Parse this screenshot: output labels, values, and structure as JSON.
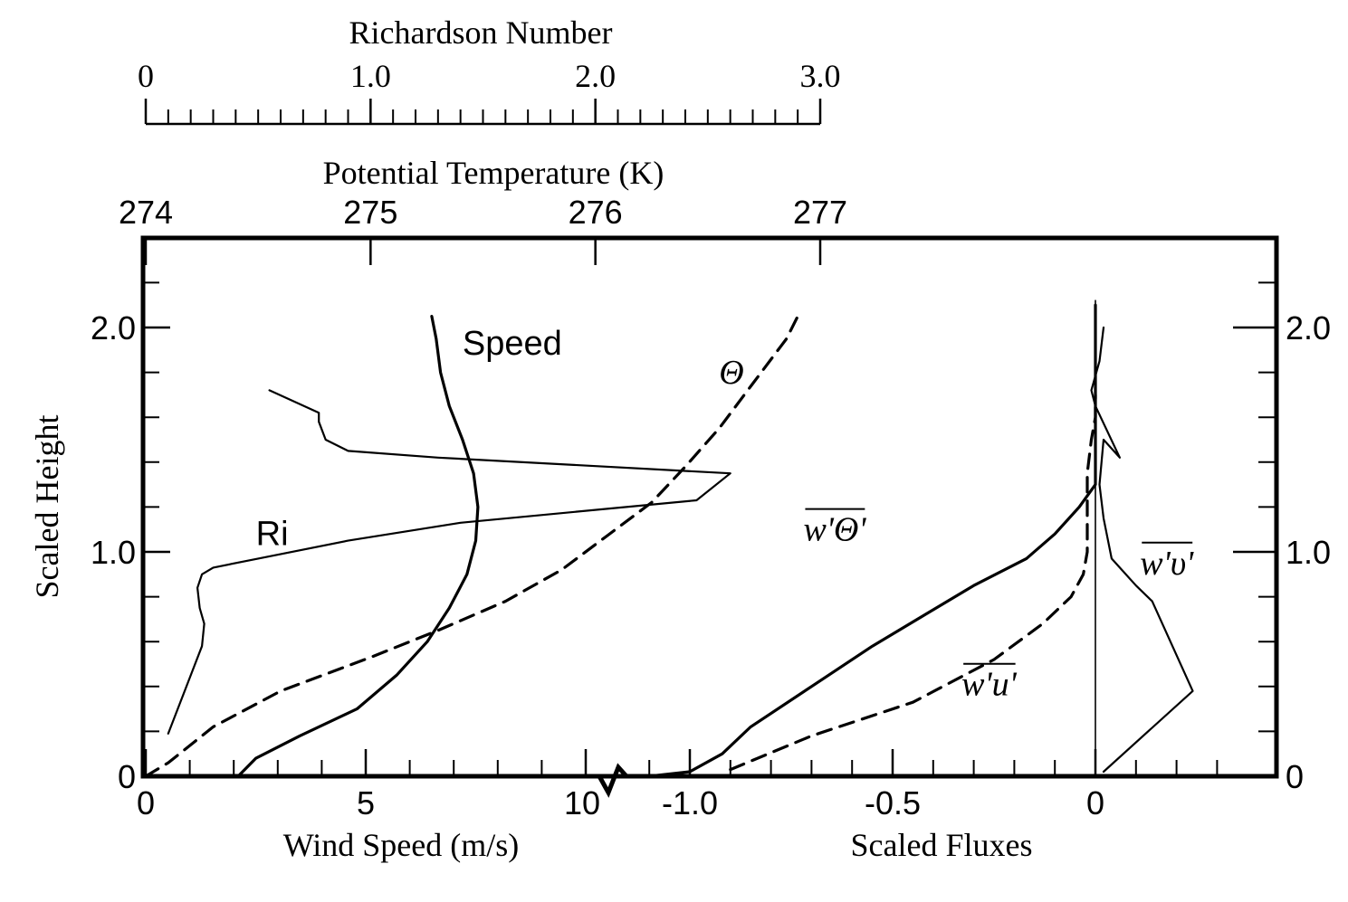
{
  "chart_data": {
    "type": "line",
    "axes": {
      "richardson": {
        "title": "Richardson Number",
        "range": [
          0,
          3.0
        ],
        "ticks": [
          {
            "v": 0,
            "label": "0"
          },
          {
            "v": 1.0,
            "label": "1.0"
          },
          {
            "v": 2.0,
            "label": "2.0"
          },
          {
            "v": 3.0,
            "label": "3.0"
          }
        ],
        "minor_step": 0.1
      },
      "potential_temperature": {
        "title": "Potential Temperature (K)",
        "range": [
          274,
          277
        ],
        "ticks": [
          {
            "v": 274,
            "label": "274"
          },
          {
            "v": 275,
            "label": "275"
          },
          {
            "v": 276,
            "label": "276"
          },
          {
            "v": 277,
            "label": "277"
          }
        ]
      },
      "wind_speed": {
        "title": "Wind Speed (m/s)",
        "range": [
          0,
          10.5
        ],
        "ticks": [
          {
            "v": 0,
            "label": "0"
          },
          {
            "v": 5,
            "label": "5"
          },
          {
            "v": 10,
            "label": "10"
          }
        ],
        "minor_step": 1
      },
      "scaled_fluxes": {
        "title": "Scaled Fluxes",
        "range": [
          -1.2,
          0.4
        ],
        "ticks": [
          {
            "v": -1.0,
            "label": "-1.0"
          },
          {
            "v": -0.5,
            "label": "-0.5"
          },
          {
            "v": 0,
            "label": "0"
          }
        ],
        "minor_step": 0.1
      },
      "height": {
        "title": "Scaled Height",
        "range": [
          0,
          2.4
        ],
        "left_ticks": [
          {
            "v": 0,
            "label": "0"
          },
          {
            "v": 1.0,
            "label": "1.0"
          },
          {
            "v": 2.0,
            "label": "2.0"
          }
        ],
        "right_ticks": [
          {
            "v": 0,
            "label": "0"
          },
          {
            "v": 1.0,
            "label": "1.0"
          },
          {
            "v": 2.0,
            "label": "2.0"
          }
        ],
        "minor_step": 0.2
      }
    },
    "series": [
      {
        "name": "Speed",
        "axis": "wind_speed",
        "style": "solid-thick",
        "label_position": [
          7.2,
          1.88
        ],
        "points": [
          [
            2.1,
            0.0
          ],
          [
            2.5,
            0.08
          ],
          [
            3.5,
            0.18
          ],
          [
            4.8,
            0.3
          ],
          [
            5.7,
            0.45
          ],
          [
            6.4,
            0.6
          ],
          [
            6.9,
            0.75
          ],
          [
            7.3,
            0.9
          ],
          [
            7.5,
            1.05
          ],
          [
            7.55,
            1.2
          ],
          [
            7.45,
            1.35
          ],
          [
            7.2,
            1.5
          ],
          [
            6.9,
            1.65
          ],
          [
            6.7,
            1.8
          ],
          [
            6.6,
            1.95
          ],
          [
            6.5,
            2.05
          ]
        ]
      },
      {
        "name": "Ri",
        "axis": "richardson",
        "style": "solid-thin",
        "label_position": [
          0.49,
          1.03
        ],
        "points": [
          [
            0.1,
            0.19
          ],
          [
            0.2,
            0.45
          ],
          [
            0.25,
            0.58
          ],
          [
            0.26,
            0.68
          ],
          [
            0.24,
            0.75
          ],
          [
            0.23,
            0.84
          ],
          [
            0.25,
            0.9
          ],
          [
            0.3,
            0.93
          ],
          [
            0.5,
            0.97
          ],
          [
            0.9,
            1.05
          ],
          [
            1.4,
            1.13
          ],
          [
            2.45,
            1.23
          ],
          [
            2.6,
            1.35
          ],
          [
            1.3,
            1.42
          ],
          [
            0.9,
            1.45
          ],
          [
            0.8,
            1.5
          ],
          [
            0.77,
            1.58
          ],
          [
            0.77,
            1.62
          ],
          [
            0.55,
            1.72
          ]
        ]
      },
      {
        "name": "Θ",
        "axis": "potential_temperature",
        "style": "dashed-thick",
        "label_position": [
          276.55,
          1.75
        ],
        "points": [
          [
            274.0,
            0.0
          ],
          [
            274.1,
            0.06
          ],
          [
            274.3,
            0.22
          ],
          [
            274.6,
            0.38
          ],
          [
            275.0,
            0.53
          ],
          [
            275.3,
            0.65
          ],
          [
            275.6,
            0.78
          ],
          [
            275.85,
            0.92
          ],
          [
            276.05,
            1.07
          ],
          [
            276.25,
            1.22
          ],
          [
            276.4,
            1.38
          ],
          [
            276.55,
            1.55
          ],
          [
            276.7,
            1.75
          ],
          [
            276.85,
            1.95
          ],
          [
            276.9,
            2.05
          ]
        ]
      },
      {
        "name": "w'Θ'",
        "axis": "scaled_fluxes",
        "style": "solid-thick",
        "label_position": [
          -0.72,
          1.05
        ],
        "points": [
          [
            -1.1,
            0.0
          ],
          [
            -1.0,
            0.02
          ],
          [
            -0.92,
            0.1
          ],
          [
            -0.85,
            0.22
          ],
          [
            -0.7,
            0.4
          ],
          [
            -0.55,
            0.58
          ],
          [
            -0.42,
            0.72
          ],
          [
            -0.3,
            0.85
          ],
          [
            -0.17,
            0.97
          ],
          [
            -0.1,
            1.08
          ],
          [
            -0.04,
            1.2
          ],
          [
            0.0,
            1.3
          ],
          [
            0.0,
            1.45
          ],
          [
            0.0,
            1.8
          ],
          [
            0.0,
            2.1
          ]
        ]
      },
      {
        "name": "w'u'",
        "axis": "scaled_fluxes",
        "style": "dashed-thick",
        "label_position": [
          -0.33,
          0.36
        ],
        "points": [
          [
            -0.9,
            0.03
          ],
          [
            -0.7,
            0.18
          ],
          [
            -0.45,
            0.33
          ],
          [
            -0.25,
            0.52
          ],
          [
            -0.13,
            0.68
          ],
          [
            -0.06,
            0.8
          ],
          [
            -0.03,
            0.9
          ],
          [
            -0.02,
            1.0
          ],
          [
            -0.02,
            1.2
          ],
          [
            -0.02,
            1.35
          ],
          [
            -0.01,
            1.5
          ],
          [
            0.0,
            1.6
          ],
          [
            0.0,
            1.7
          ]
        ]
      },
      {
        "name": "w'υ'",
        "axis": "scaled_fluxes",
        "style": "solid-thin",
        "label_position": [
          0.11,
          0.9
        ],
        "points": [
          [
            0.02,
            0.02
          ],
          [
            0.24,
            0.38
          ],
          [
            0.14,
            0.78
          ],
          [
            0.1,
            0.85
          ],
          [
            0.04,
            0.97
          ],
          [
            0.02,
            1.15
          ],
          [
            0.01,
            1.3
          ],
          [
            0.02,
            1.5
          ],
          [
            0.06,
            1.42
          ],
          [
            0.0,
            1.65
          ],
          [
            -0.01,
            1.72
          ],
          [
            0.01,
            1.85
          ],
          [
            0.02,
            2.0
          ]
        ]
      },
      {
        "name": "vertical reference line",
        "axis": "scaled_fluxes",
        "style": "solid-hairline",
        "points": [
          [
            0.0,
            0.0
          ],
          [
            0.0,
            2.12
          ]
        ]
      }
    ]
  }
}
